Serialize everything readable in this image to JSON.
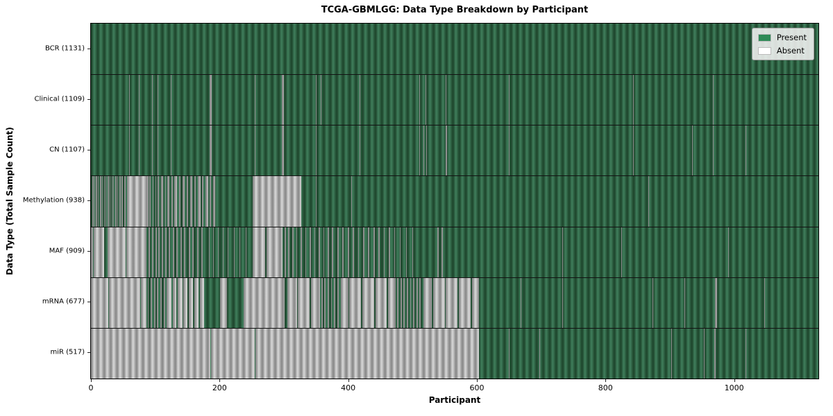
{
  "title": "TCGA-GBMLGG: Data Type Breakdown by Participant",
  "legend": {
    "present_label": "Present",
    "absent_label": "Absent",
    "present_color": "#2e8b57",
    "absent_color": "#ffffff"
  },
  "chart_data": {
    "type": "heatmap",
    "title": "TCGA-GBMLGG: Data Type Breakdown by Participant",
    "xlabel": "Participant",
    "ylabel": "Data Type (Total Sample Count)",
    "x_ticks": [
      0,
      200,
      400,
      600,
      800,
      1000
    ],
    "x_max": 1131,
    "grid": false,
    "legend_position": "upper right",
    "cell_states": [
      "Present",
      "Absent"
    ],
    "rows": [
      {
        "data_type": "BCR",
        "label": "BCR (1131)",
        "present_count": 1131,
        "absent_ranges": []
      },
      {
        "data_type": "Clinical",
        "label": "Clinical (1109)",
        "present_count": 1109,
        "absent_ranges": [
          [
            59,
            60
          ],
          [
            75,
            76
          ],
          [
            95,
            96
          ],
          [
            104,
            105
          ],
          [
            124,
            125
          ],
          [
            185,
            188
          ],
          [
            255,
            256
          ],
          [
            297,
            300
          ],
          [
            350,
            351
          ],
          [
            357,
            358
          ],
          [
            418,
            419
          ],
          [
            510,
            512
          ],
          [
            520,
            521
          ],
          [
            552,
            553
          ],
          [
            650,
            651
          ],
          [
            843,
            844
          ],
          [
            967,
            968
          ]
        ]
      },
      {
        "data_type": "CN",
        "label": "CN (1107)",
        "present_count": 1107,
        "absent_ranges": [
          [
            59,
            60
          ],
          [
            75,
            76
          ],
          [
            95,
            96
          ],
          [
            104,
            105
          ],
          [
            124,
            125
          ],
          [
            185,
            188
          ],
          [
            255,
            256
          ],
          [
            297,
            300
          ],
          [
            350,
            351
          ],
          [
            418,
            419
          ],
          [
            510,
            512
          ],
          [
            517,
            518
          ],
          [
            521,
            522
          ],
          [
            552,
            554
          ],
          [
            650,
            651
          ],
          [
            843,
            844
          ],
          [
            935,
            936
          ],
          [
            967,
            968
          ],
          [
            1018,
            1019
          ]
        ]
      },
      {
        "data_type": "Methylation",
        "label": "Methylation (938)",
        "present_count": 938,
        "absent_ranges": [
          [
            2,
            4
          ],
          [
            5,
            6
          ],
          [
            8,
            10
          ],
          [
            11,
            12
          ],
          [
            14,
            16
          ],
          [
            17,
            18
          ],
          [
            20,
            22
          ],
          [
            23,
            24
          ],
          [
            26,
            28
          ],
          [
            29,
            30
          ],
          [
            32,
            34
          ],
          [
            35,
            36
          ],
          [
            38,
            40
          ],
          [
            41,
            42
          ],
          [
            44,
            46
          ],
          [
            48,
            50
          ],
          [
            52,
            54
          ],
          [
            56,
            90
          ],
          [
            91,
            93
          ],
          [
            96,
            97
          ],
          [
            100,
            101
          ],
          [
            104,
            106
          ],
          [
            109,
            112
          ],
          [
            115,
            117
          ],
          [
            119,
            122
          ],
          [
            125,
            127
          ],
          [
            130,
            134
          ],
          [
            137,
            139
          ],
          [
            142,
            146
          ],
          [
            149,
            151
          ],
          [
            154,
            158
          ],
          [
            161,
            163
          ],
          [
            166,
            170
          ],
          [
            173,
            175
          ],
          [
            178,
            182
          ],
          [
            185,
            187
          ],
          [
            190,
            193
          ],
          [
            251,
            327
          ],
          [
            350,
            351
          ],
          [
            405,
            406
          ],
          [
            867,
            868
          ]
        ]
      },
      {
        "data_type": "MAF",
        "label": "MAF (909)",
        "present_count": 909,
        "absent_ranges": [
          [
            0,
            3
          ],
          [
            4,
            20
          ],
          [
            26,
            54
          ],
          [
            55,
            86
          ],
          [
            90,
            92
          ],
          [
            95,
            97
          ],
          [
            100,
            102
          ],
          [
            105,
            107
          ],
          [
            110,
            112
          ],
          [
            116,
            118
          ],
          [
            121,
            123
          ],
          [
            127,
            129
          ],
          [
            133,
            135
          ],
          [
            139,
            141
          ],
          [
            145,
            147
          ],
          [
            152,
            154
          ],
          [
            158,
            160
          ],
          [
            165,
            167
          ],
          [
            172,
            174
          ],
          [
            183,
            184
          ],
          [
            190,
            191
          ],
          [
            197,
            198
          ],
          [
            205,
            206
          ],
          [
            213,
            214
          ],
          [
            222,
            223
          ],
          [
            231,
            232
          ],
          [
            241,
            242
          ],
          [
            251,
            271
          ],
          [
            273,
            298
          ],
          [
            301,
            303
          ],
          [
            307,
            309
          ],
          [
            313,
            315
          ],
          [
            319,
            321
          ],
          [
            326,
            328
          ],
          [
            333,
            335
          ],
          [
            340,
            342
          ],
          [
            347,
            349
          ],
          [
            354,
            356
          ],
          [
            361,
            363
          ],
          [
            368,
            370
          ],
          [
            375,
            377
          ],
          [
            383,
            385
          ],
          [
            391,
            393
          ],
          [
            399,
            401
          ],
          [
            407,
            409
          ],
          [
            415,
            417
          ],
          [
            423,
            425
          ],
          [
            431,
            433
          ],
          [
            439,
            441
          ],
          [
            447,
            449
          ],
          [
            455,
            457
          ],
          [
            463,
            465
          ],
          [
            472,
            473
          ],
          [
            480,
            481
          ],
          [
            490,
            491
          ],
          [
            500,
            501
          ],
          [
            539,
            541
          ],
          [
            545,
            547
          ],
          [
            733,
            734
          ],
          [
            824,
            825
          ],
          [
            991,
            992
          ]
        ]
      },
      {
        "data_type": "mRNA",
        "label": "mRNA (677)",
        "present_count": 677,
        "absent_ranges": [
          [
            0,
            27
          ],
          [
            28,
            77
          ],
          [
            78,
            86
          ],
          [
            88,
            90
          ],
          [
            93,
            95
          ],
          [
            98,
            100
          ],
          [
            103,
            105
          ],
          [
            108,
            110
          ],
          [
            113,
            115
          ],
          [
            118,
            125
          ],
          [
            127,
            133
          ],
          [
            135,
            142
          ],
          [
            144,
            150
          ],
          [
            152,
            159
          ],
          [
            161,
            167
          ],
          [
            169,
            176
          ],
          [
            201,
            212
          ],
          [
            237,
            301
          ],
          [
            305,
            320
          ],
          [
            322,
            340
          ],
          [
            342,
            356
          ],
          [
            358,
            360
          ],
          [
            363,
            365
          ],
          [
            368,
            370
          ],
          [
            373,
            375
          ],
          [
            378,
            380
          ],
          [
            383,
            385
          ],
          [
            388,
            400
          ],
          [
            402,
            420
          ],
          [
            422,
            440
          ],
          [
            442,
            460
          ],
          [
            462,
            474
          ],
          [
            476,
            478
          ],
          [
            481,
            483
          ],
          [
            486,
            488
          ],
          [
            491,
            493
          ],
          [
            496,
            498
          ],
          [
            501,
            503
          ],
          [
            506,
            508
          ],
          [
            511,
            513
          ],
          [
            517,
            530
          ],
          [
            532,
            550
          ],
          [
            552,
            570
          ],
          [
            572,
            590
          ],
          [
            592,
            603
          ],
          [
            668,
            669
          ],
          [
            733,
            734
          ],
          [
            873,
            874
          ],
          [
            923,
            924
          ],
          [
            970,
            973
          ],
          [
            1047,
            1048
          ]
        ]
      },
      {
        "data_type": "miR",
        "label": "miR (517)",
        "present_count": 517,
        "absent_ranges": [
          [
            0,
            186
          ],
          [
            187,
            255
          ],
          [
            256,
            603
          ],
          [
            650,
            651
          ],
          [
            697,
            698
          ],
          [
            902,
            903
          ],
          [
            953,
            954
          ],
          [
            969,
            971
          ],
          [
            1018,
            1019
          ]
        ]
      }
    ]
  }
}
